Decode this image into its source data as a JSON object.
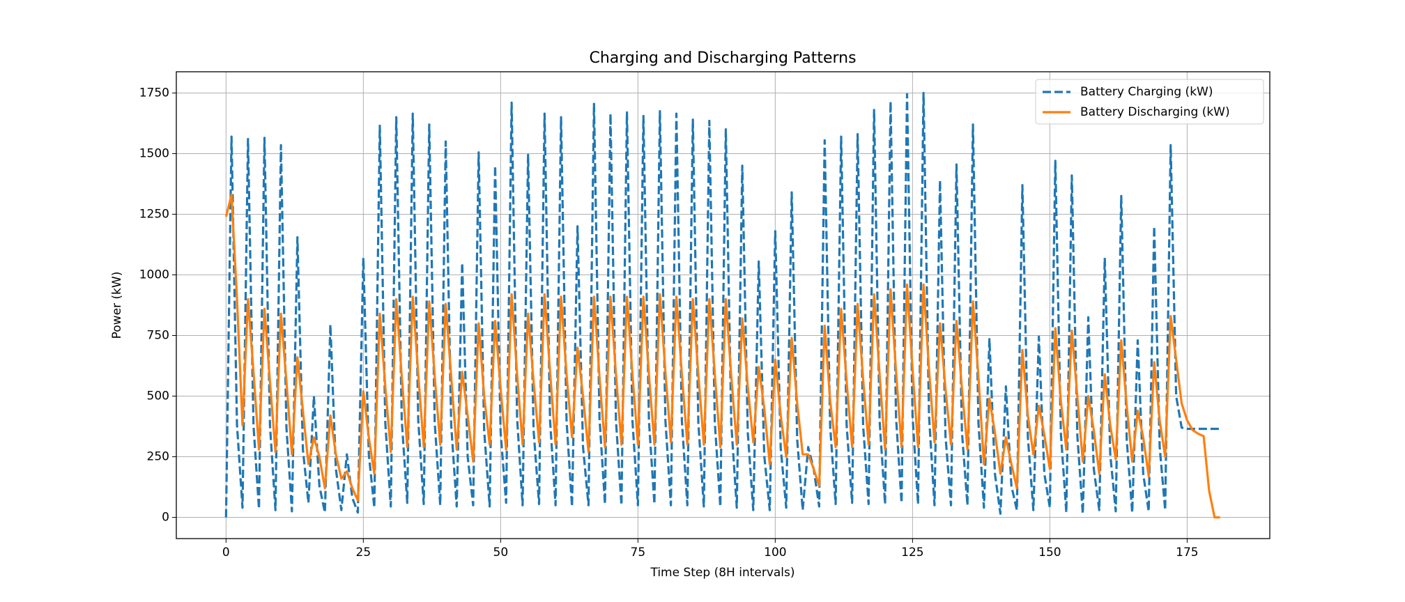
{
  "chart_data": {
    "type": "line",
    "title": "Charging and Discharging Patterns",
    "x_label": "Time Step (8H intervals)",
    "y_label": "Power (kW)",
    "x": [
      0,
      1,
      2,
      3,
      4,
      5,
      6,
      7,
      8,
      9,
      10,
      11,
      12,
      13,
      14,
      15,
      16,
      17,
      18,
      19,
      20,
      21,
      22,
      23,
      24,
      25,
      26,
      27,
      28,
      29,
      30,
      31,
      32,
      33,
      34,
      35,
      36,
      37,
      38,
      39,
      40,
      41,
      42,
      43,
      44,
      45,
      46,
      47,
      48,
      49,
      50,
      51,
      52,
      53,
      54,
      55,
      56,
      57,
      58,
      59,
      60,
      61,
      62,
      63,
      64,
      65,
      66,
      67,
      68,
      69,
      70,
      71,
      72,
      73,
      74,
      75,
      76,
      77,
      78,
      79,
      80,
      81,
      82,
      83,
      84,
      85,
      86,
      87,
      88,
      89,
      90,
      91,
      92,
      93,
      94,
      95,
      96,
      97,
      98,
      99,
      100,
      101,
      102,
      103,
      104,
      105,
      106,
      107,
      108,
      109,
      110,
      111,
      112,
      113,
      114,
      115,
      116,
      117,
      118,
      119,
      120,
      121,
      122,
      123,
      124,
      125,
      126,
      127,
      128,
      129,
      130,
      131,
      132,
      133,
      134,
      135,
      136,
      137,
      138,
      139,
      140,
      141,
      142,
      143,
      144,
      145,
      146,
      147,
      148,
      149,
      150,
      151,
      152,
      153,
      154,
      155,
      156,
      157,
      158,
      159,
      160,
      161,
      162,
      163,
      164,
      165,
      166,
      167,
      168,
      169,
      170,
      171,
      172,
      173,
      174,
      175,
      176,
      177,
      178,
      179,
      180,
      181
    ],
    "series": [
      {
        "name": "Battery Charging (kW)",
        "color": "#1f77b4",
        "dash": true,
        "values": [
          0,
          1570,
          380,
          40,
          1560,
          380,
          35,
          1565,
          380,
          30,
          1535,
          370,
          25,
          1155,
          280,
          60,
          500,
          130,
          20,
          795,
          200,
          30,
          260,
          80,
          20,
          1070,
          260,
          40,
          1615,
          390,
          45,
          1650,
          400,
          60,
          1665,
          400,
          55,
          1620,
          390,
          50,
          1550,
          380,
          45,
          1050,
          250,
          50,
          1505,
          360,
          45,
          1450,
          350,
          60,
          1710,
          410,
          50,
          1495,
          360,
          55,
          1665,
          400,
          50,
          1650,
          400,
          45,
          1200,
          290,
          50,
          1705,
          410,
          55,
          1665,
          400,
          50,
          1670,
          400,
          50,
          1655,
          400,
          55,
          1675,
          400,
          50,
          1665,
          400,
          50,
          1640,
          390,
          45,
          1635,
          390,
          45,
          1600,
          385,
          40,
          1450,
          350,
          30,
          1055,
          255,
          30,
          1180,
          285,
          40,
          1340,
          320,
          30,
          290,
          200,
          45,
          1555,
          375,
          55,
          1570,
          380,
          60,
          1580,
          380,
          55,
          1680,
          400,
          55,
          1715,
          410,
          60,
          1745,
          420,
          55,
          1750,
          420,
          50,
          1390,
          335,
          50,
          1455,
          350,
          50,
          1620,
          390,
          40,
          735,
          180,
          15,
          540,
          130,
          30,
          1370,
          330,
          30,
          745,
          180,
          40,
          1470,
          350,
          20,
          1410,
          340,
          15,
          825,
          200,
          30,
          1070,
          260,
          25,
          1325,
          320,
          20,
          730,
          180,
          25,
          1200,
          290,
          30,
          1535,
          500,
          370,
          365,
          365,
          365,
          365,
          365,
          365,
          365
        ]
      },
      {
        "name": "Battery Discharging (kW)",
        "color": "#ff7f0e",
        "dash": false,
        "values": [
          1240,
          1330,
          900,
          380,
          900,
          600,
          280,
          860,
          560,
          270,
          840,
          560,
          260,
          660,
          440,
          220,
          330,
          250,
          120,
          420,
          260,
          160,
          190,
          120,
          70,
          520,
          330,
          180,
          840,
          540,
          270,
          900,
          580,
          290,
          910,
          590,
          290,
          890,
          580,
          300,
          880,
          580,
          280,
          600,
          420,
          230,
          800,
          500,
          300,
          810,
          530,
          280,
          920,
          590,
          300,
          840,
          560,
          310,
          920,
          600,
          300,
          910,
          590,
          330,
          700,
          500,
          270,
          910,
          580,
          290,
          910,
          590,
          300,
          910,
          590,
          300,
          910,
          590,
          300,
          920,
          600,
          310,
          910,
          590,
          300,
          900,
          590,
          300,
          900,
          590,
          290,
          900,
          580,
          300,
          820,
          540,
          310,
          620,
          450,
          220,
          650,
          420,
          250,
          740,
          470,
          260,
          260,
          200,
          130,
          790,
          480,
          290,
          860,
          560,
          290,
          880,
          570,
          300,
          920,
          590,
          280,
          940,
          600,
          290,
          960,
          610,
          290,
          960,
          610,
          310,
          800,
          530,
          300,
          810,
          530,
          280,
          890,
          580,
          220,
          490,
          350,
          180,
          330,
          220,
          120,
          690,
          420,
          260,
          460,
          340,
          200,
          780,
          480,
          280,
          770,
          500,
          230,
          500,
          360,
          180,
          590,
          380,
          240,
          730,
          460,
          230,
          440,
          330,
          170,
          640,
          400,
          250,
          830,
          650,
          470,
          400,
          360,
          345,
          335,
          110,
          0,
          0
        ]
      }
    ],
    "xlim": [
      -9.05,
      190.05
    ],
    "xticks": [
      0,
      25,
      50,
      75,
      100,
      125,
      150,
      175
    ],
    "ylim": [
      -87.5,
      1837.5
    ],
    "yticks": [
      0,
      250,
      500,
      750,
      1000,
      1250,
      1500,
      1750
    ],
    "grid": true,
    "legend": "upper right"
  }
}
